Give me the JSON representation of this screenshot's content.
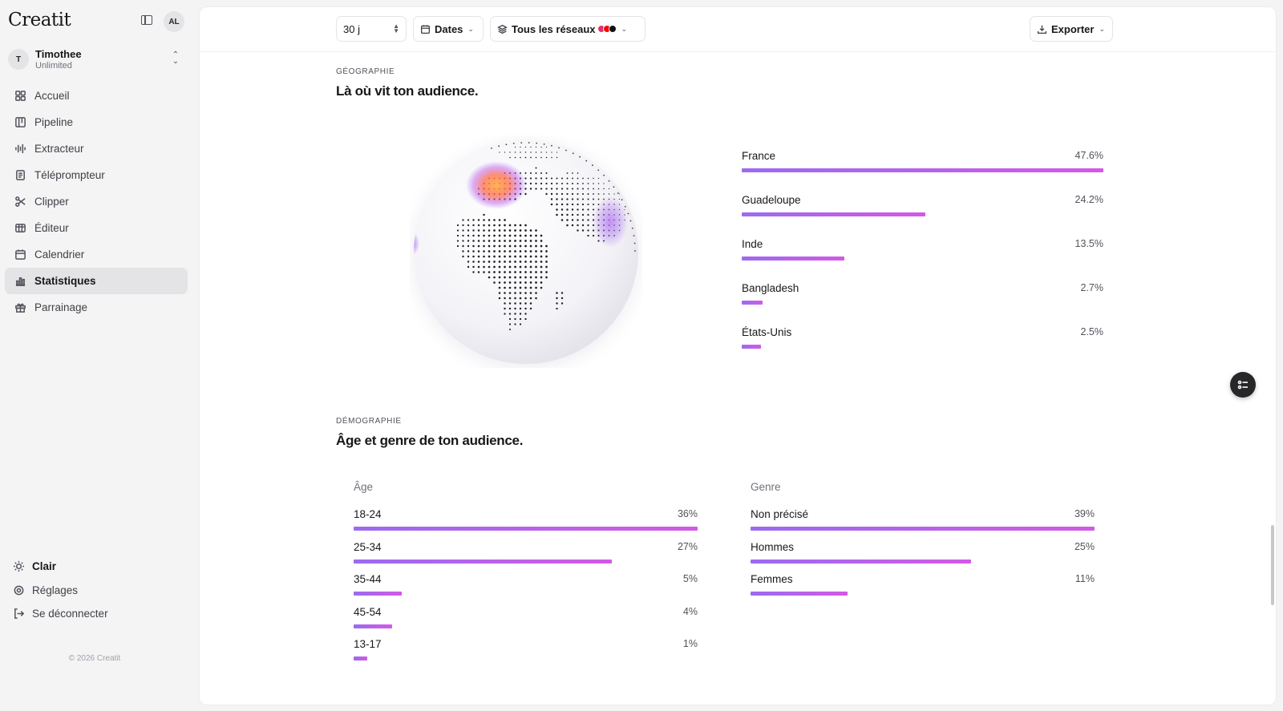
{
  "app": {
    "logo": "Creatit",
    "top_avatar": "AL",
    "copyright": "© 2026 Creatit"
  },
  "user": {
    "initial": "T",
    "name": "Timothee",
    "plan": "Unlimited"
  },
  "sidebar": {
    "items": [
      {
        "label": "Accueil",
        "icon": "grid-icon"
      },
      {
        "label": "Pipeline",
        "icon": "kanban-icon"
      },
      {
        "label": "Extracteur",
        "icon": "waveform-icon"
      },
      {
        "label": "Téléprompteur",
        "icon": "script-icon"
      },
      {
        "label": "Clipper",
        "icon": "scissors-icon"
      },
      {
        "label": "Éditeur",
        "icon": "film-icon"
      },
      {
        "label": "Calendrier",
        "icon": "calendar-icon"
      },
      {
        "label": "Statistiques",
        "icon": "bar-chart-icon",
        "active": true
      },
      {
        "label": "Parrainage",
        "icon": "gift-icon"
      }
    ],
    "bottom": [
      {
        "label": "Clair",
        "icon": "sun-icon"
      },
      {
        "label": "Réglages",
        "icon": "gear-icon"
      },
      {
        "label": "Se déconnecter",
        "icon": "logout-icon"
      }
    ]
  },
  "toolbar": {
    "period": "30 j",
    "dates": "Dates",
    "networks": "Tous les réseaux",
    "network_colors": [
      "#e1306c",
      "#ff0000",
      "#111111"
    ],
    "export": "Exporter"
  },
  "geography": {
    "label": "GÉOGRAPHIE",
    "title": "Là où vit ton audience.",
    "countries": [
      {
        "name": "France",
        "value": 47.6,
        "pct": "47.6%"
      },
      {
        "name": "Guadeloupe",
        "value": 24.2,
        "pct": "24.2%"
      },
      {
        "name": "Inde",
        "value": 13.5,
        "pct": "13.5%"
      },
      {
        "name": "Bangladesh",
        "value": 2.7,
        "pct": "2.7%"
      },
      {
        "name": "États-Unis",
        "value": 2.5,
        "pct": "2.5%"
      }
    ]
  },
  "demography": {
    "label": "DÉMOGRAPHIE",
    "title": "Âge et genre de ton audience.",
    "age_title": "Âge",
    "gender_title": "Genre",
    "age": [
      {
        "name": "18-24",
        "value": 36,
        "pct": "36%"
      },
      {
        "name": "25-34",
        "value": 27,
        "pct": "27%"
      },
      {
        "name": "35-44",
        "value": 5,
        "pct": "5%"
      },
      {
        "name": "45-54",
        "value": 4,
        "pct": "4%"
      },
      {
        "name": "13-17",
        "value": 1,
        "pct": "1%"
      }
    ],
    "gender": [
      {
        "name": "Non précisé",
        "value": 39,
        "pct": "39%"
      },
      {
        "name": "Hommes",
        "value": 25,
        "pct": "25%"
      },
      {
        "name": "Femmes",
        "value": 11,
        "pct": "11%"
      }
    ]
  },
  "colors": {
    "bar_start": "#9b6bf0",
    "bar_end": "#d25ae6",
    "heat_hot": "#ff9a3c",
    "heat_cool": "#a56cf0"
  }
}
